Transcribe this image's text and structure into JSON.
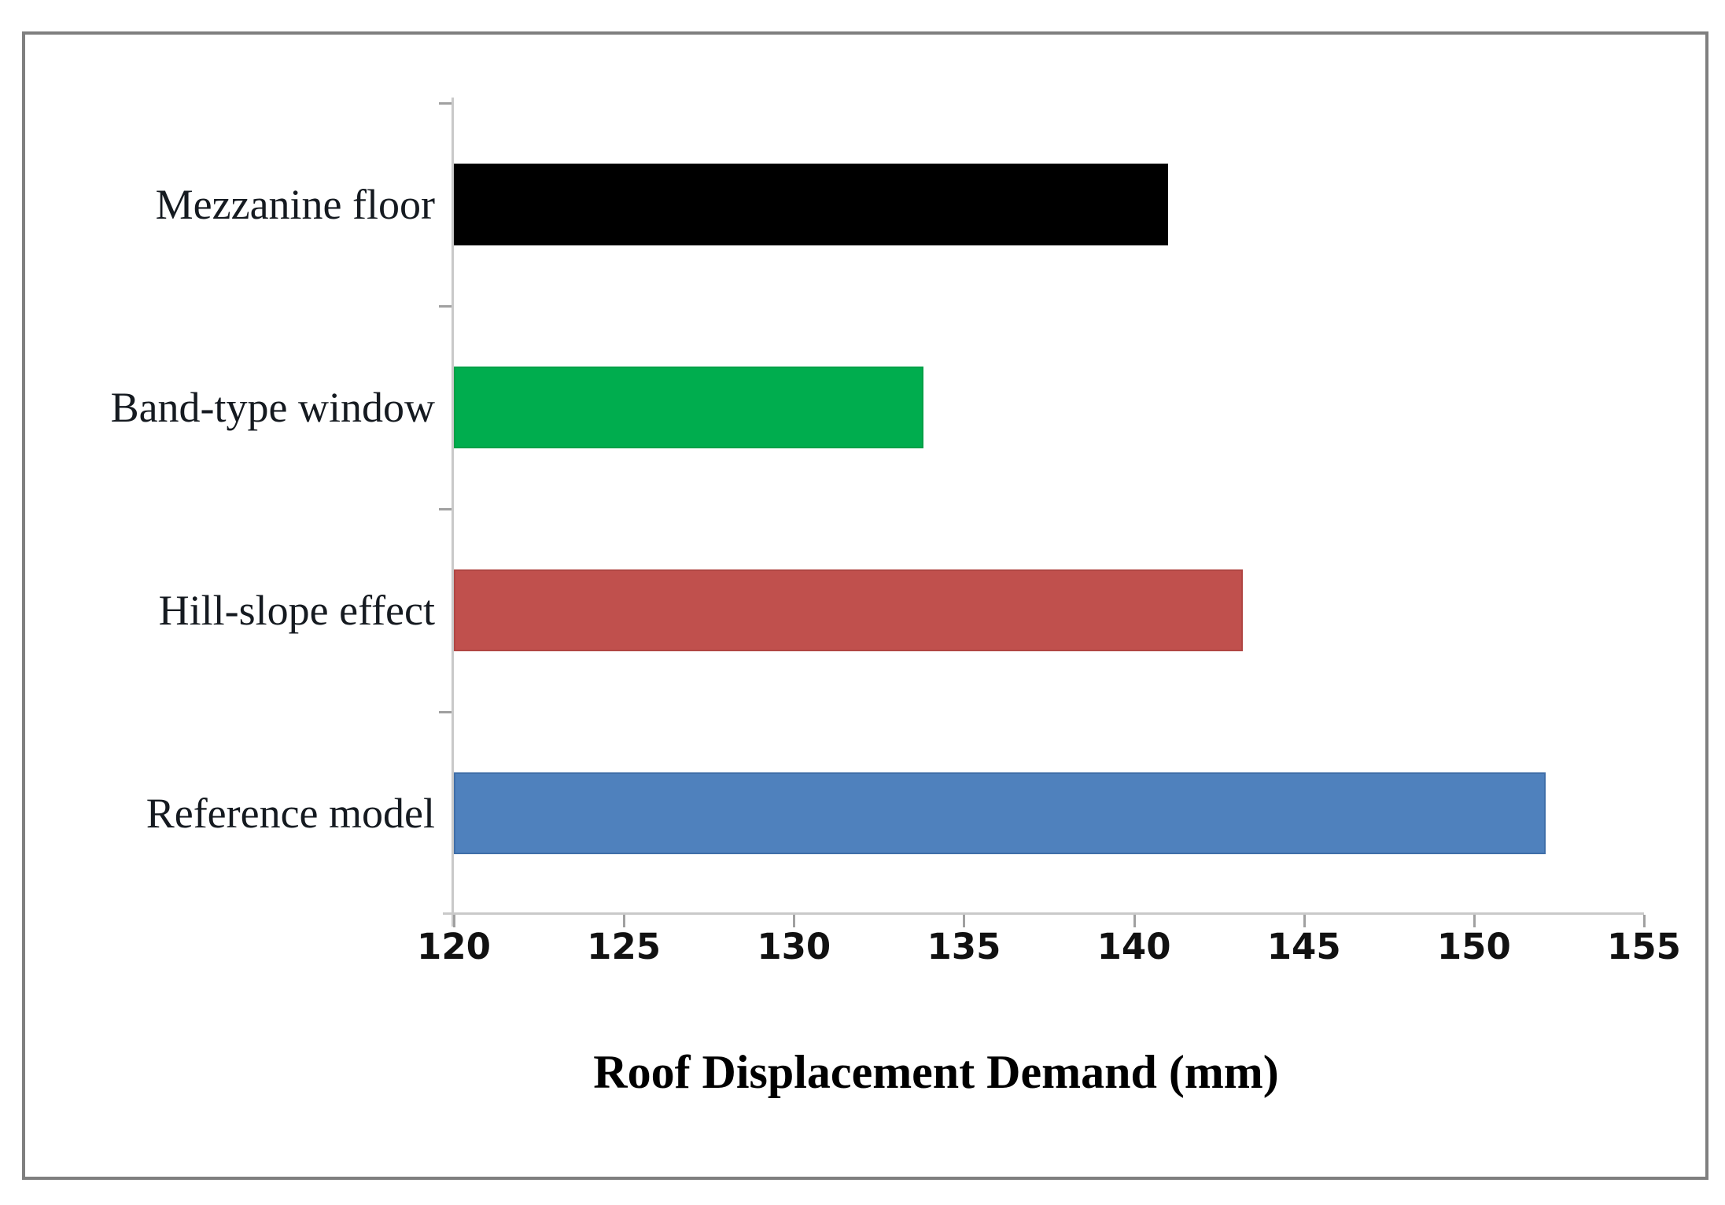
{
  "chart_data": {
    "type": "bar",
    "orientation": "horizontal",
    "title": "",
    "xlabel": "Roof Displacement Demand (mm)",
    "ylabel": "",
    "categories": [
      "Mezzanine floor",
      "Band-type window",
      "Hill-slope effect",
      "Reference model"
    ],
    "values": [
      141.0,
      133.8,
      143.2,
      152.1
    ],
    "bar_colors": [
      "#000000",
      "#00ad4e",
      "#c0504d",
      "#4f81bd"
    ],
    "bar_border_colors": [
      "#000000",
      "#00a047",
      "#b04643",
      "#3f6ea8"
    ],
    "xlim": [
      120,
      155
    ],
    "xticks": [
      120,
      125,
      130,
      135,
      140,
      145,
      150,
      155
    ],
    "grid": "off",
    "legend": "none",
    "axis_color": "#c9c9c9",
    "tick_color": "#a0a0a0",
    "frame_color": "#7f7f7f"
  }
}
